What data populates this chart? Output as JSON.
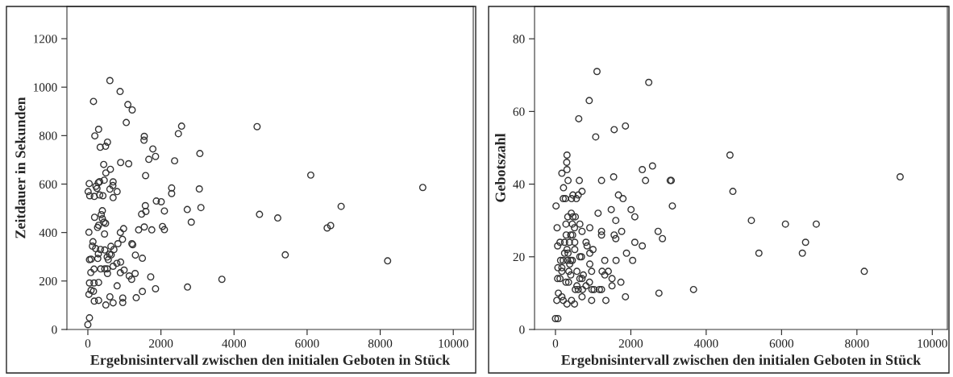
{
  "chart_data": [
    {
      "type": "scatter",
      "xlabel": "Ergebnisintervall zwischen den initialen Geboten in Stück",
      "ylabel": "Zeitdauer in Sekunden",
      "marker": "circle",
      "xlim": [
        -573,
        10547
      ],
      "ylim": [
        0,
        1333
      ],
      "xticks": [
        0,
        2000,
        4000,
        6000,
        8000,
        10000
      ],
      "yticks": [
        0,
        200,
        400,
        600,
        800,
        1000,
        1200
      ],
      "series": [
        {
          "color": "#333333",
          "x": [
            603,
            882,
            154,
            1095,
            1213,
            1051,
            294,
            191,
            537,
            485,
            338,
            1544,
            1536,
            1779,
            1852,
            1668,
            897,
            1117,
            434,
            617,
            492,
            1580,
            2477,
            2565,
            2374,
            3065,
            2293,
            2293,
            3050,
            3094,
            37,
            287,
            323,
            220,
            250,
            448,
            691,
            684,
            603,
            801,
            691,
            7,
            51,
            176,
            323,
            412,
            397,
            367,
            397,
            441,
            485,
            184,
            294,
            265,
            456,
            29,
            978,
            889,
            1389,
            1544,
            1749,
            1470,
            1588,
            1573,
            1874,
            2007,
            2095,
            2043,
            2095,
            2720,
            2830,
            140,
            125,
            213,
            345,
            463,
            632,
            713,
            595,
            639,
            529,
            559,
            823,
            948,
            1205,
            1227,
            1301,
            1492,
            287,
            272,
            44,
            88,
            691,
            897,
            794,
            169,
            353,
            463,
            529,
            537,
            81,
            992,
            889,
            1132,
            1198,
            1294,
            1720,
            44,
            169,
            294,
            29,
            88,
            154,
            801,
            1492,
            1852,
            1323,
            603,
            691,
            955,
            955,
            492,
            176,
            294,
            44,
            0,
            2727,
            3668,
            4631,
            4697,
            5196,
            5402,
            6100,
            6931,
            6549,
            6644,
            8203,
            9165
          ],
          "values": [
            1027,
            982,
            941,
            928,
            906,
            854,
            826,
            799,
            773,
            756,
            752,
            797,
            781,
            745,
            714,
            702,
            689,
            684,
            681,
            661,
            646,
            635,
            808,
            839,
            696,
            726,
            584,
            561,
            580,
            503,
            602,
            606,
            610,
            591,
            582,
            616,
            609,
            594,
            579,
            569,
            544,
            569,
            552,
            549,
            555,
            552,
            490,
            474,
            457,
            443,
            438,
            463,
            430,
            421,
            394,
            401,
            416,
            400,
            411,
            423,
            411,
            476,
            487,
            511,
            530,
            527,
            489,
            425,
            412,
            495,
            443,
            362,
            344,
            334,
            330,
            328,
            343,
            330,
            311,
            308,
            299,
            288,
            354,
            372,
            354,
            350,
            307,
            294,
            312,
            293,
            288,
            290,
            261,
            278,
            273,
            249,
            250,
            250,
            250,
            231,
            235,
            245,
            234,
            221,
            207,
            231,
            217,
            192,
            192,
            194,
            145,
            162,
            158,
            180,
            157,
            168,
            131,
            135,
            110,
            130,
            111,
            101,
            117,
            120,
            48,
            20,
            175,
            207,
            837,
            475,
            460,
            308,
            637,
            508,
            419,
            429,
            283,
            586
          ]
        }
      ]
    },
    {
      "type": "scatter",
      "xlabel": "Ergebnisintervall zwischen den initialen Geboten in Stück",
      "ylabel": "Gebotszahl",
      "marker": "circle",
      "xlim": [
        -555,
        10400
      ],
      "ylim": [
        0,
        88.9
      ],
      "xticks": [
        0,
        2000,
        4000,
        6000,
        8000,
        10000
      ],
      "yticks": [
        0,
        20,
        40,
        60,
        80
      ],
      "series": [
        {
          "color": "#333333",
          "x": [
            1102,
            2476,
            896,
            618,
            1558,
            1857,
            1068,
            306,
            299,
            306,
            170,
            334,
            633,
            1223,
            1544,
            2304,
            2575,
            2390,
            3045,
            3073,
            3102,
            15,
            213,
            206,
            263,
            705,
            605,
            463,
            427,
            555,
            1671,
            1793,
            1131,
            1480,
            2006,
            2106,
            1601,
            420,
            463,
            327,
            527,
            278,
            448,
            647,
            43,
            505,
            911,
            705,
            1223,
            1223,
            1757,
            2724,
            285,
            406,
            455,
            1558,
            1601,
            2839,
            121,
            242,
            370,
            512,
            811,
            2106,
            57,
            839,
            2304,
            306,
            512,
            996,
            242,
            334,
            911,
            1885,
            647,
            690,
            136,
            206,
            320,
            406,
            448,
            1309,
            1608,
            2049,
            377,
            911,
            64,
            170,
            170,
            355,
            569,
            960,
            1238,
            1402,
            57,
            121,
            647,
            705,
            1501,
            406,
            739,
            1309,
            278,
            348,
            903,
            1736,
            569,
            811,
            1501,
            527,
            605,
            718,
            968,
            1024,
            1166,
            1223,
            3664,
            78,
            2746,
            170,
            705,
            1857,
            36,
            206,
            427,
            960,
            1338,
            306,
            505,
            0,
            64,
            4631,
            4708,
            5199,
            5399,
            6103,
            6921,
            6637,
            6552,
            8195,
            9147
          ],
          "values": [
            71,
            68,
            63,
            58,
            55,
            56,
            53,
            48,
            46,
            44,
            43,
            41,
            41,
            41,
            42,
            44,
            45,
            41,
            41,
            41,
            34,
            34,
            39,
            36,
            36,
            38,
            37,
            37,
            36,
            36,
            37,
            36,
            32,
            33,
            33,
            31,
            30,
            32,
            31,
            31,
            31,
            29,
            29,
            29,
            28,
            28,
            28,
            27,
            27,
            26,
            27,
            27,
            26,
            26,
            26,
            26,
            25,
            25,
            24,
            24,
            24,
            24,
            24,
            24,
            23,
            23,
            23,
            22,
            22,
            22,
            21,
            21,
            21,
            21,
            20,
            20,
            19,
            19,
            19,
            19,
            19,
            19,
            19,
            19,
            18,
            18,
            17,
            17,
            16,
            16,
            16,
            16,
            16,
            16,
            14,
            14,
            14,
            14,
            14,
            15,
            15,
            15,
            13,
            13,
            13,
            13,
            12,
            12,
            12,
            11,
            11,
            11,
            11,
            11,
            11,
            11,
            11,
            10,
            10,
            9,
            9,
            9,
            8,
            8,
            8,
            8,
            8,
            7,
            7,
            3,
            3,
            48,
            38,
            30,
            21,
            29,
            29,
            24,
            21,
            16,
            42
          ]
        }
      ]
    }
  ]
}
